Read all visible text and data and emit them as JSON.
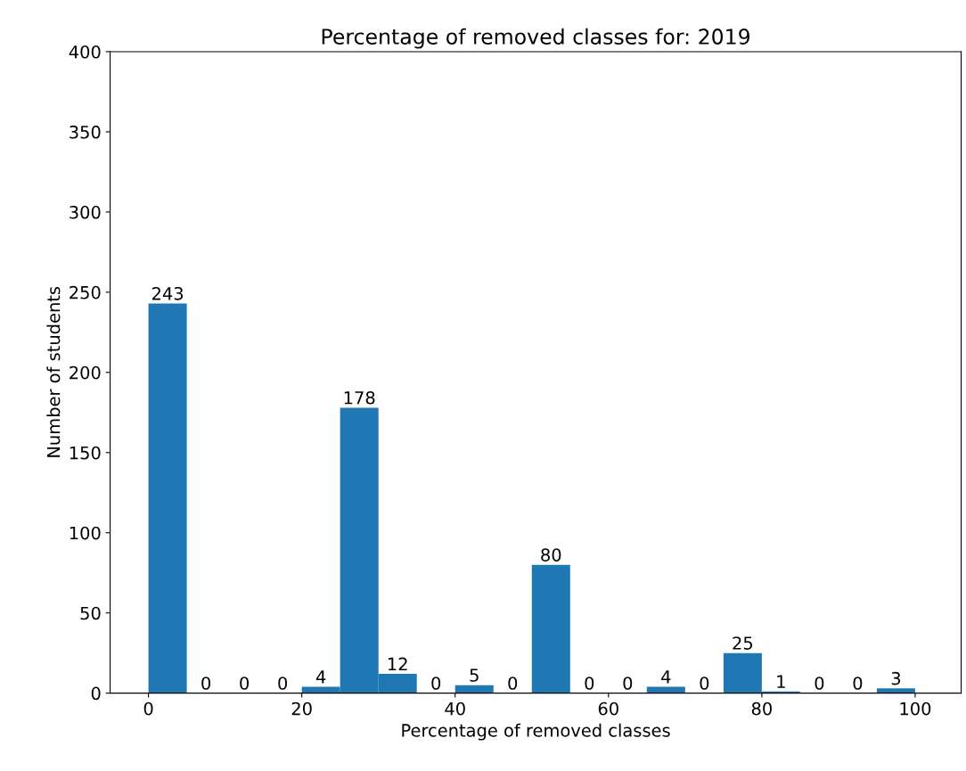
{
  "chart_data": {
    "type": "histogram",
    "title": "Percentage of removed classes for: 2019",
    "xlabel": "Percentage of removed classes",
    "ylabel": "Number of students",
    "bins": [
      0,
      5,
      10,
      15,
      20,
      25,
      30,
      35,
      40,
      45,
      50,
      55,
      60,
      65,
      70,
      75,
      80,
      85,
      90,
      95,
      100
    ],
    "values": [
      243,
      0,
      0,
      0,
      4,
      178,
      12,
      0,
      5,
      0,
      80,
      0,
      0,
      4,
      0,
      25,
      1,
      0,
      0,
      3
    ],
    "color": "#1f77b4",
    "data_labels": true,
    "xlim": [
      -5,
      106
    ],
    "xticks": [
      0,
      20,
      40,
      60,
      80,
      100
    ],
    "ylim": [
      0,
      400
    ],
    "yticks": [
      0,
      50,
      100,
      150,
      200,
      250,
      300,
      350,
      400
    ]
  }
}
